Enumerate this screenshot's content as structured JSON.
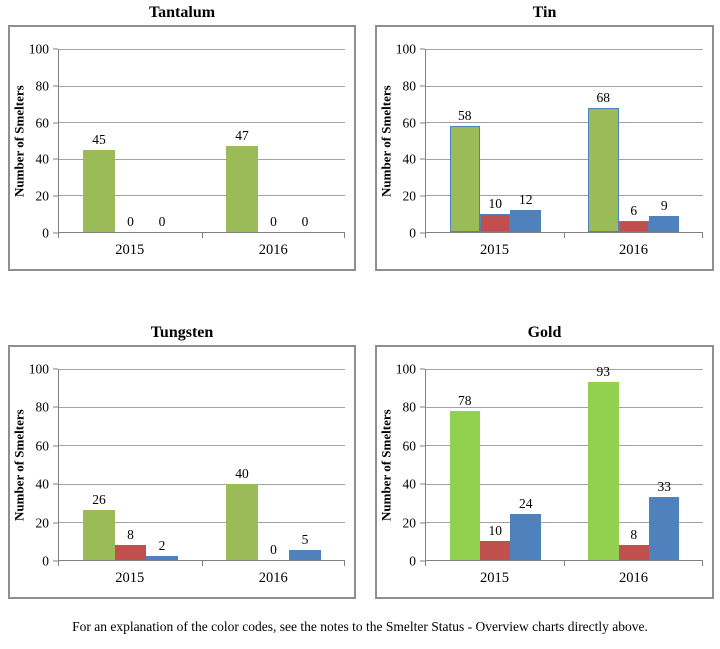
{
  "page": {
    "caption": "For an explanation of the color codes, see the notes to the Smelter Status - Overview charts directly above."
  },
  "colors": {
    "green_olive": "#9BBB59",
    "green_bright": "#92D050",
    "red": "#C0504D",
    "blue": "#4F81BD",
    "gridline": "#A3A3A3",
    "axis_line": "#7F7F7F",
    "panel_border": "#8F8F8F"
  },
  "chart_data": [
    {
      "type": "bar",
      "title": "Tantalum",
      "xlabel": "",
      "ylabel": "Number of Smelters",
      "categories": [
        "2015",
        "2016"
      ],
      "ylim": [
        0,
        100
      ],
      "yticks": [
        0,
        20,
        40,
        60,
        80,
        100
      ],
      "grid": true,
      "legend_position": "none",
      "bar_border": null,
      "series": [
        {
          "name": "series-green",
          "color": "#9BBB59",
          "values": [
            45,
            47
          ]
        },
        {
          "name": "series-red",
          "color": "#C0504D",
          "values": [
            0,
            0
          ]
        },
        {
          "name": "series-blue",
          "color": "#4F81BD",
          "values": [
            0,
            0
          ]
        }
      ]
    },
    {
      "type": "bar",
      "title": "Tin",
      "xlabel": "",
      "ylabel": "Number of Smelters",
      "categories": [
        "2015",
        "2016"
      ],
      "ylim": [
        0,
        100
      ],
      "yticks": [
        0,
        20,
        40,
        60,
        80,
        100
      ],
      "grid": true,
      "legend_position": "none",
      "bar_border": "#4F81BD",
      "series": [
        {
          "name": "series-green",
          "color": "#9BBB59",
          "values": [
            58,
            68
          ]
        },
        {
          "name": "series-red",
          "color": "#C0504D",
          "values": [
            10,
            6
          ]
        },
        {
          "name": "series-blue",
          "color": "#4F81BD",
          "values": [
            12,
            9
          ]
        }
      ]
    },
    {
      "type": "bar",
      "title": "Tungsten",
      "xlabel": "",
      "ylabel": "Number of Smelters",
      "categories": [
        "2015",
        "2016"
      ],
      "ylim": [
        0,
        100
      ],
      "yticks": [
        0,
        20,
        40,
        60,
        80,
        100
      ],
      "grid": true,
      "legend_position": "none",
      "bar_border": null,
      "series": [
        {
          "name": "series-green",
          "color": "#9BBB59",
          "values": [
            26,
            40
          ]
        },
        {
          "name": "series-red",
          "color": "#C0504D",
          "values": [
            8,
            0
          ]
        },
        {
          "name": "series-blue",
          "color": "#4F81BD",
          "values": [
            2,
            5
          ]
        }
      ]
    },
    {
      "type": "bar",
      "title": "Gold",
      "xlabel": "",
      "ylabel": "Number of Smelters",
      "categories": [
        "2015",
        "2016"
      ],
      "ylim": [
        0,
        100
      ],
      "yticks": [
        0,
        20,
        40,
        60,
        80,
        100
      ],
      "grid": true,
      "legend_position": "none",
      "bar_border": null,
      "series": [
        {
          "name": "series-green",
          "color": "#92D050",
          "values": [
            78,
            93
          ]
        },
        {
          "name": "series-red",
          "color": "#C0504D",
          "values": [
            10,
            8
          ]
        },
        {
          "name": "series-blue",
          "color": "#4F81BD",
          "values": [
            24,
            33
          ]
        }
      ]
    }
  ]
}
